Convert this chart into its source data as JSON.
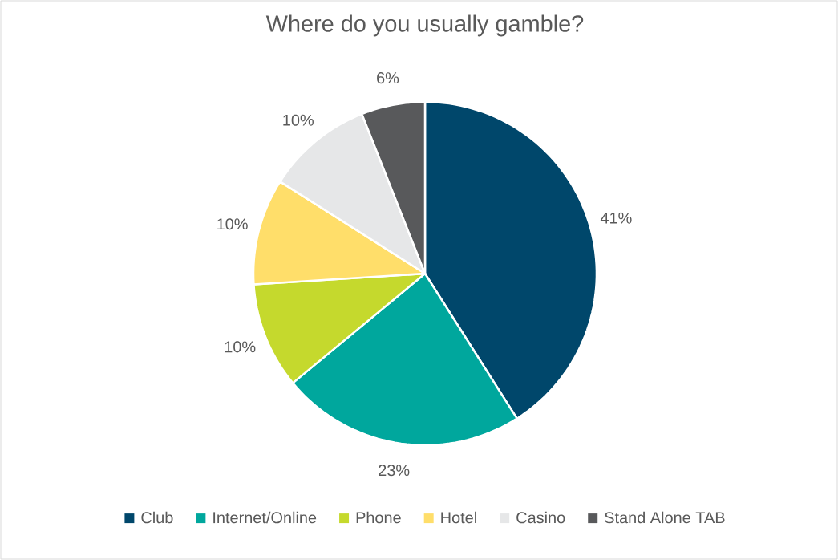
{
  "chart_data": {
    "type": "pie",
    "title": "Where do you usually gamble?",
    "categories": [
      "Club",
      "Internet/Online",
      "Phone",
      "Hotel",
      "Casino",
      "Stand Alone TAB"
    ],
    "values": [
      41,
      23,
      10,
      10,
      10,
      6
    ],
    "colors": [
      "#00476b",
      "#00a79d",
      "#c5d92d",
      "#ffde6a",
      "#e6e7e8",
      "#58595b"
    ],
    "value_labels": [
      "41%",
      "23%",
      "10%",
      "10%",
      "10%",
      "6%"
    ],
    "legend": "bottom"
  }
}
